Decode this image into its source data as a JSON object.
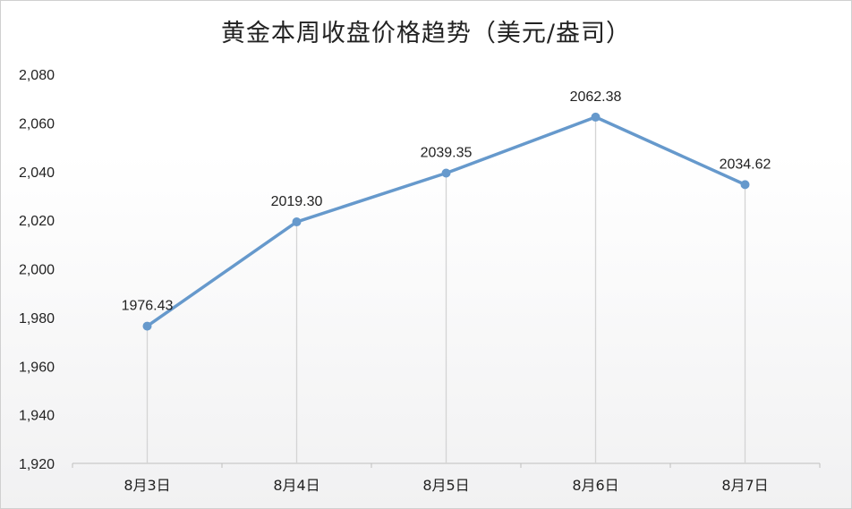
{
  "chart_data": {
    "type": "line",
    "title": "黄金本周收盘价格趋势（美元/盎司）",
    "categories": [
      "8月3日",
      "8月4日",
      "8月5日",
      "8月6日",
      "8月7日"
    ],
    "series": [
      {
        "values": [
          1976.43,
          2019.3,
          2039.35,
          2062.38,
          2034.62
        ]
      }
    ],
    "data_labels": [
      "1976.43",
      "2019.30",
      "2039.35",
      "2062.38",
      "2034.62"
    ],
    "ylim": [
      1920,
      2080
    ],
    "yticks": [
      1920,
      1940,
      1960,
      1980,
      2000,
      2020,
      2040,
      2060,
      2080
    ],
    "ytick_labels": [
      "1,920",
      "1,940",
      "1,960",
      "1,980",
      "2,000",
      "2,020",
      "2,040",
      "2,060",
      "2,080"
    ],
    "xlabel": "",
    "ylabel": "",
    "grid": false,
    "drop_lines": true,
    "legend": "none",
    "colors": {
      "line": "#6699cc",
      "marker": "#6699cc",
      "drop_line": "#d4d4d4",
      "axis": "#bfbfbf"
    }
  }
}
